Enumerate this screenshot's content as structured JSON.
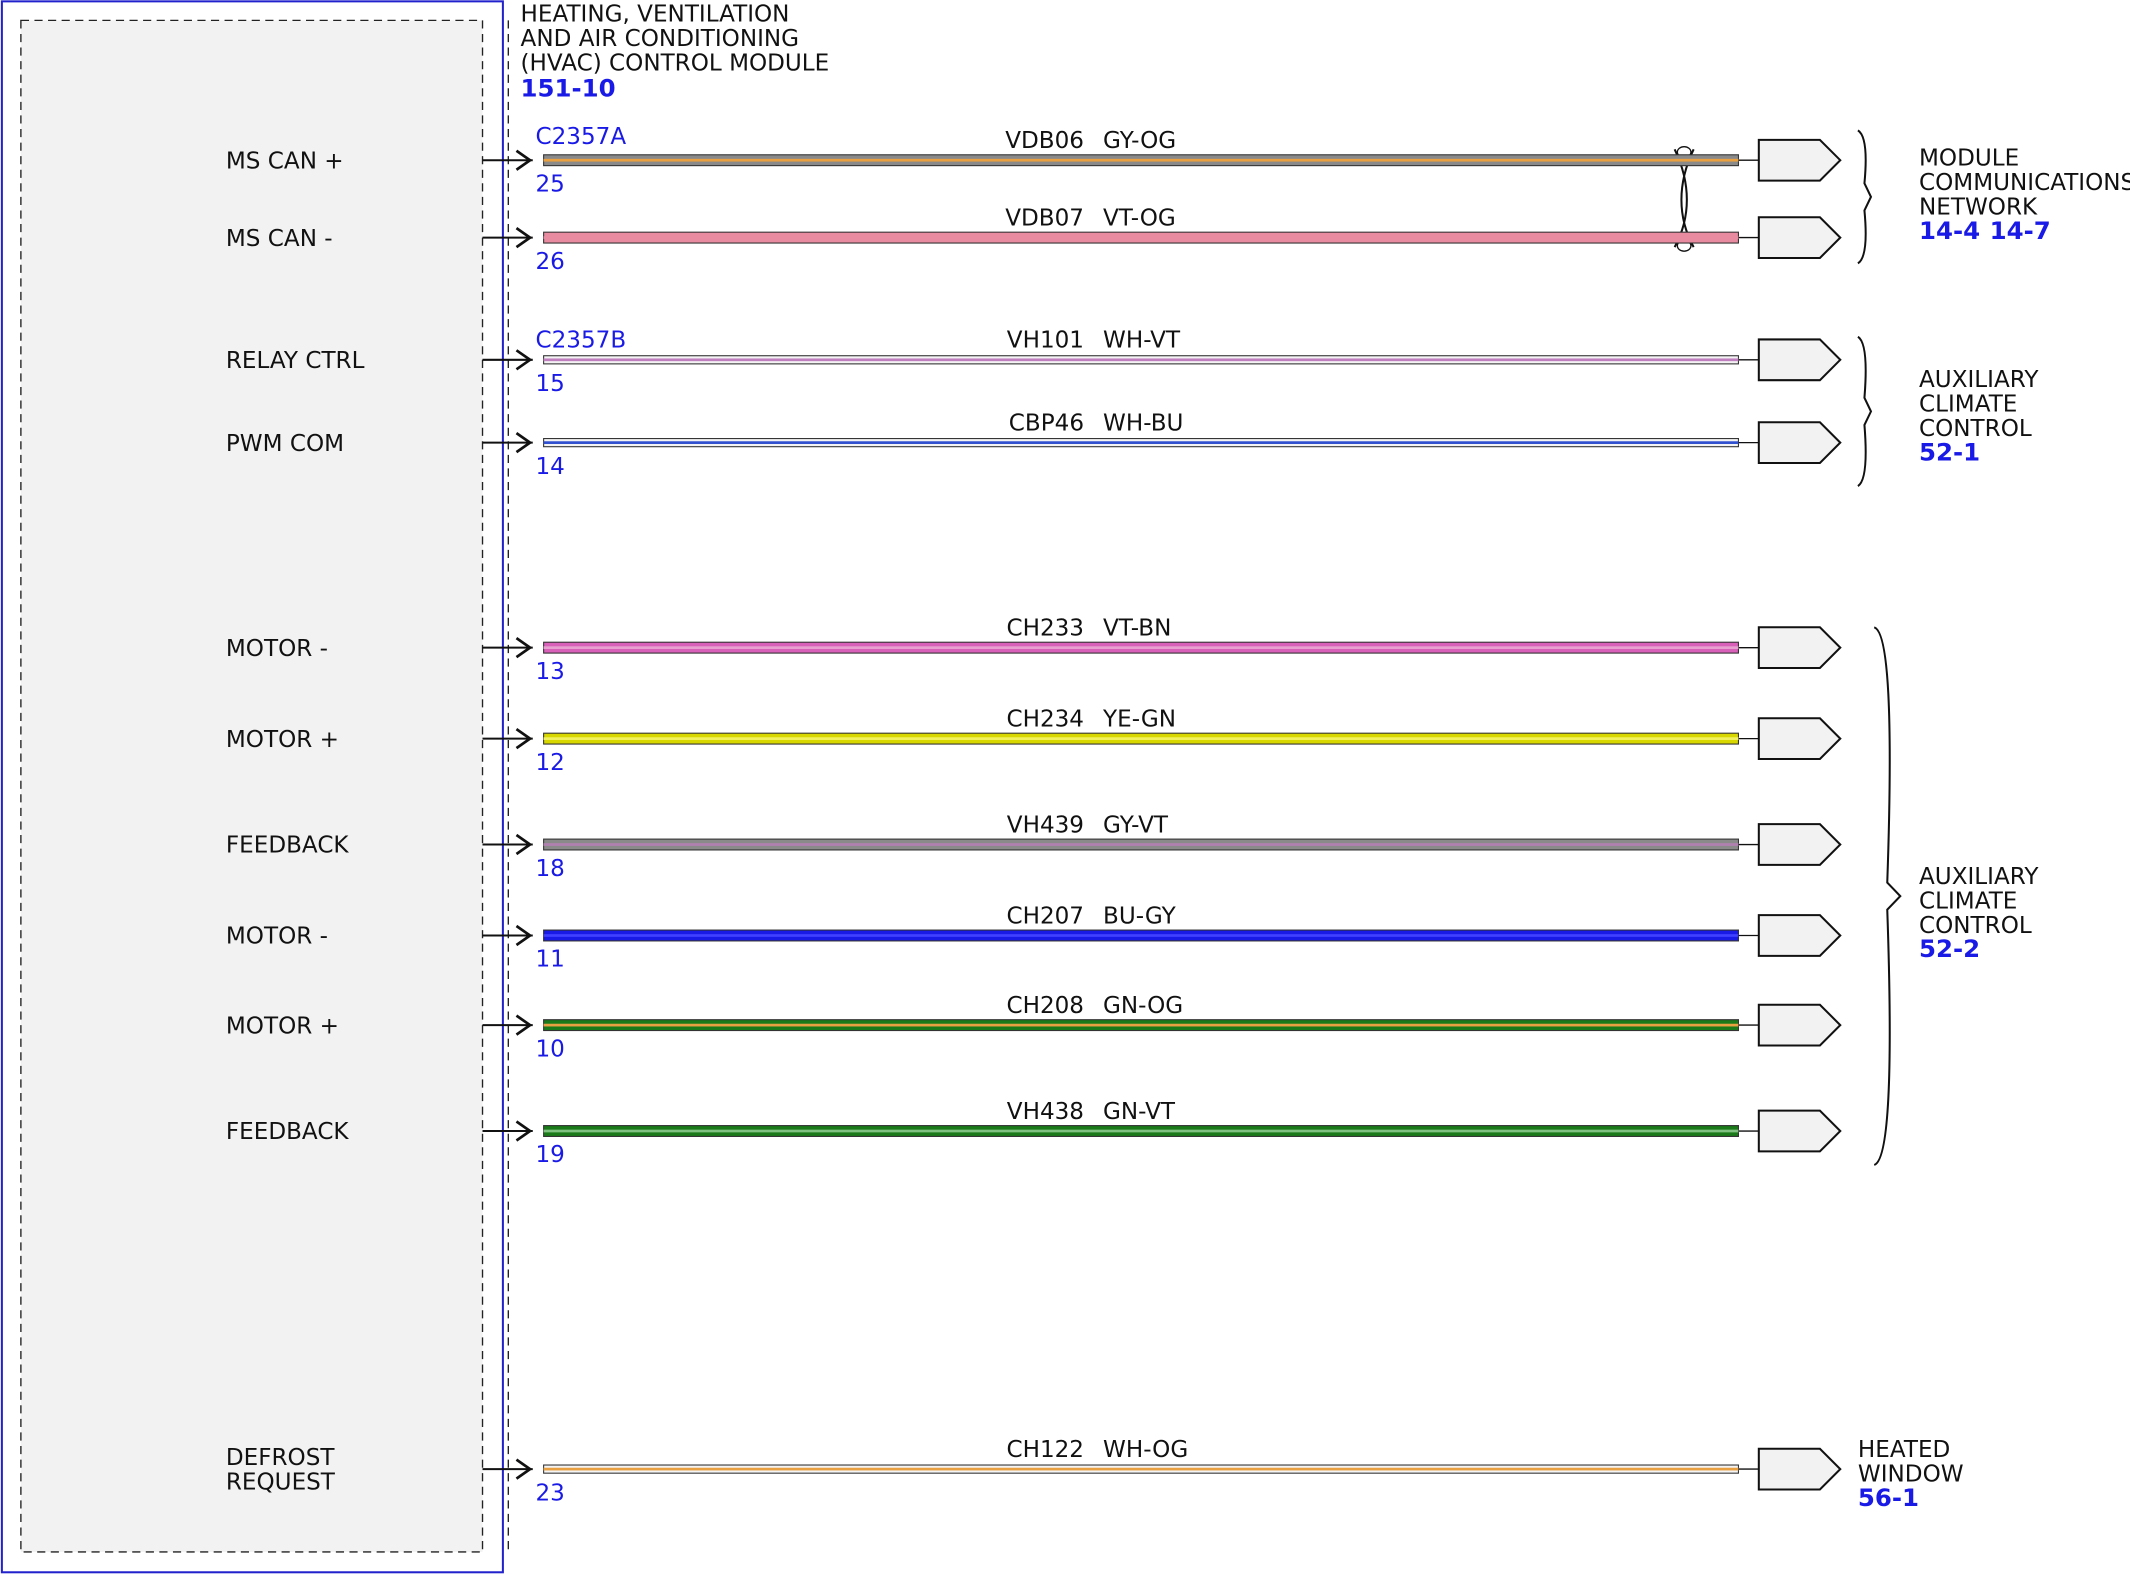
{
  "module": {
    "title": [
      "HEATING, VENTILATION",
      "AND AIR CONDITIONING",
      "(HVAC) CONTROL MODULE"
    ],
    "ref": "151-10"
  },
  "connectors": [
    "C2357A",
    "C2357B"
  ],
  "circuits": [
    {
      "label": [
        "MS CAN +"
      ],
      "pin": "25",
      "circuit": "VDB06",
      "color": "GY-OG"
    },
    {
      "label": [
        "MS CAN -"
      ],
      "pin": "26",
      "circuit": "VDB07",
      "color": "VT-OG"
    },
    {
      "label": [
        "RELAY CTRL"
      ],
      "pin": "15",
      "circuit": "VH101",
      "color": "WH-VT"
    },
    {
      "label": [
        "PWM COM"
      ],
      "pin": "14",
      "circuit": "CBP46",
      "color": "WH-BU"
    },
    {
      "label": [
        "MOTOR -"
      ],
      "pin": "13",
      "circuit": "CH233",
      "color": "VT-BN"
    },
    {
      "label": [
        "MOTOR +"
      ],
      "pin": "12",
      "circuit": "CH234",
      "color": "YE-GN"
    },
    {
      "label": [
        "FEEDBACK"
      ],
      "pin": "18",
      "circuit": "VH439",
      "color": "GY-VT"
    },
    {
      "label": [
        "MOTOR -"
      ],
      "pin": "11",
      "circuit": "CH207",
      "color": "BU-GY"
    },
    {
      "label": [
        "MOTOR +"
      ],
      "pin": "10",
      "circuit": "CH208",
      "color": "GN-OG"
    },
    {
      "label": [
        "FEEDBACK"
      ],
      "pin": "19",
      "circuit": "VH438",
      "color": "GN-VT"
    },
    {
      "label": [
        "DEFROST",
        "REQUEST"
      ],
      "pin": "23",
      "circuit": "CH122",
      "color": "WH-OG"
    }
  ],
  "destinations": [
    {
      "label": [
        "MODULE",
        "COMMUNICATIONS",
        "NETWORK"
      ],
      "refs": [
        "14-4",
        "14-7"
      ]
    },
    {
      "label": [
        "AUXILIARY",
        "CLIMATE",
        "CONTROL"
      ],
      "refs": [
        "52-1"
      ]
    },
    {
      "label": [
        "AUXILIARY",
        "CLIMATE",
        "CONTROL"
      ],
      "refs": [
        "52-2"
      ]
    },
    {
      "label": [
        "HEATED",
        "WINDOW"
      ],
      "refs": [
        "56-1"
      ]
    }
  ]
}
